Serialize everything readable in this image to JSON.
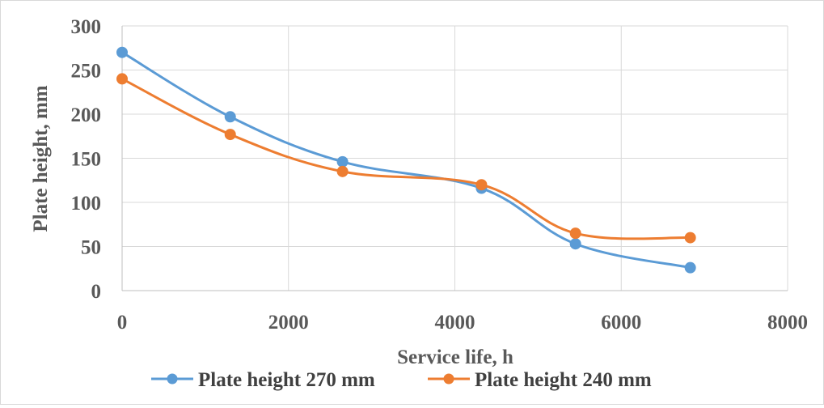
{
  "chart_data": {
    "type": "line",
    "title": "",
    "xlabel": "Service life, h",
    "ylabel": "Plate height, mm",
    "xlim": [
      0,
      8000
    ],
    "ylim": [
      0,
      300
    ],
    "xticks": [
      0,
      2000,
      4000,
      6000,
      8000
    ],
    "yticks": [
      0,
      50,
      100,
      150,
      200,
      250,
      300
    ],
    "grid": true,
    "smooth": true,
    "legend_position": "bottom",
    "series": [
      {
        "name": "Plate height 270 mm",
        "color": "#5B9BD5",
        "x": [
          0,
          1300,
          2650,
          4320,
          5450,
          6830
        ],
        "y": [
          270,
          197,
          146,
          116,
          53,
          26
        ]
      },
      {
        "name": "Plate height 240 mm",
        "color": "#ED7D31",
        "x": [
          0,
          1300,
          2650,
          4320,
          5450,
          6830
        ],
        "y": [
          240,
          177,
          135,
          120,
          65,
          60
        ]
      }
    ]
  }
}
